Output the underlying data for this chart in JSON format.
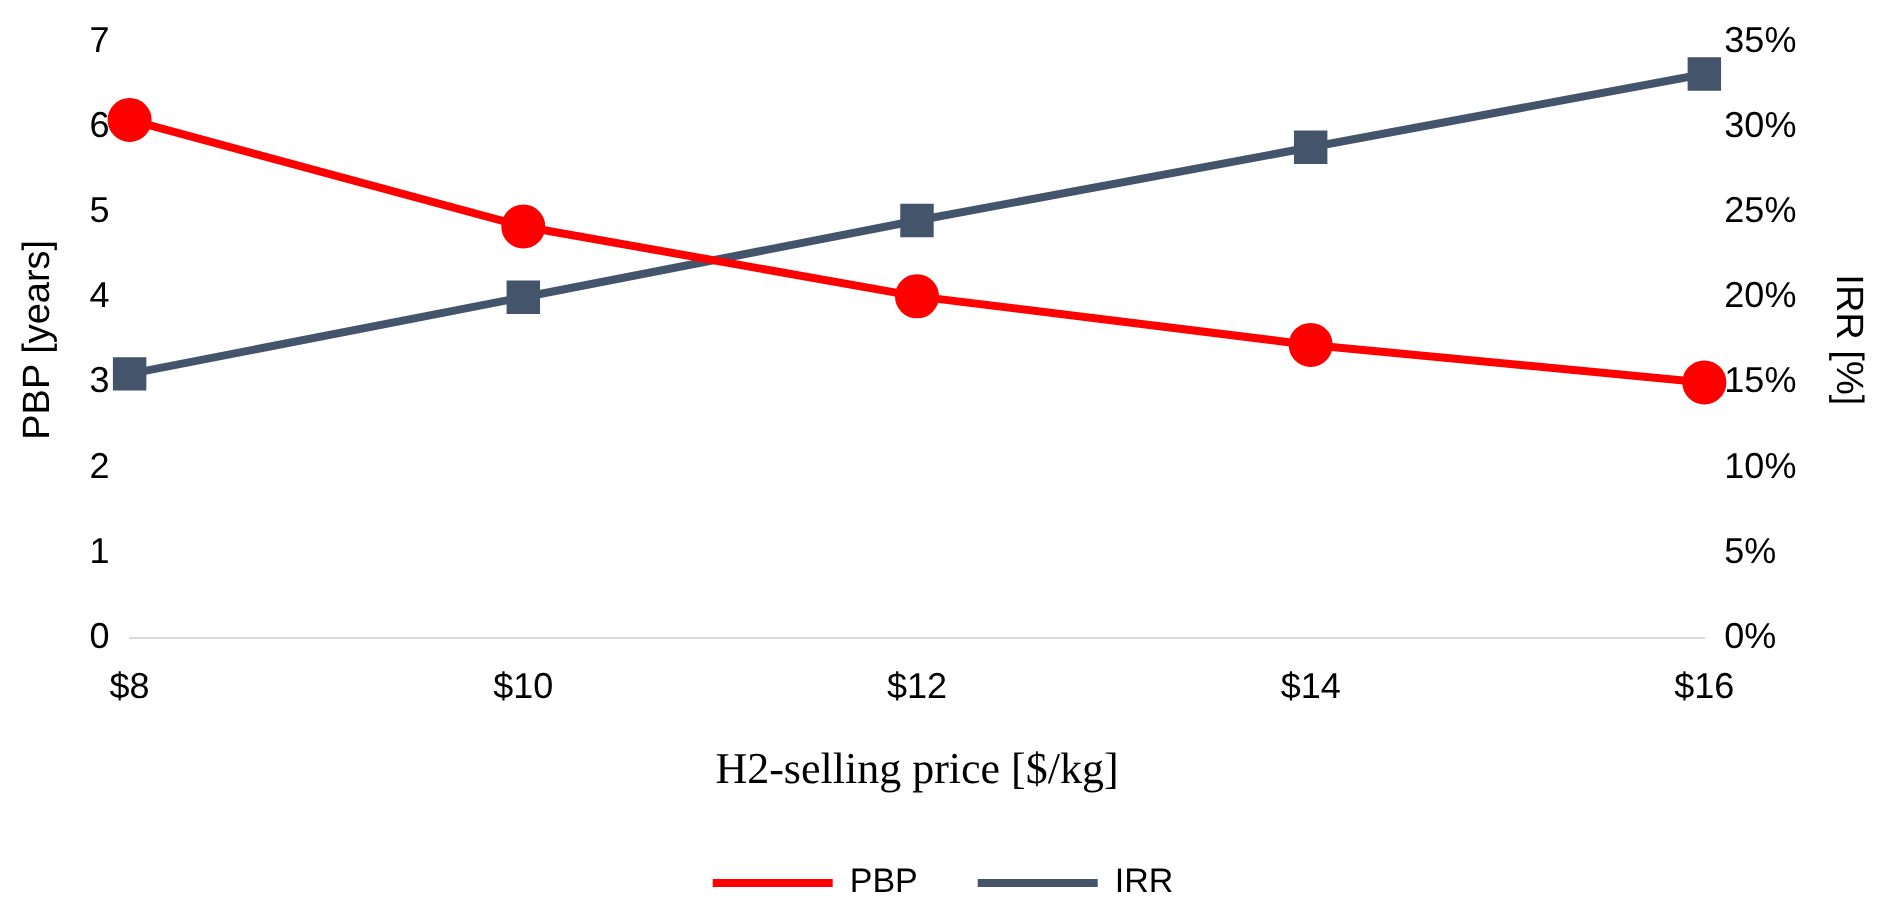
{
  "chart_data": {
    "type": "line",
    "xlabel": "H2-selling price [$/kg]",
    "ylabel": "PBP [years]",
    "y2label": "IRR [%]",
    "categories": [
      "$8",
      "$10",
      "$12",
      "$14",
      "$16"
    ],
    "series": [
      {
        "name": "PBP",
        "color": "#ff0000",
        "values": [
          6.08,
          4.83,
          4.01,
          3.44,
          3.0
        ],
        "marker": "circle"
      },
      {
        "name": "IRR",
        "color": "#44546a",
        "values": [
          15.5,
          20.0,
          24.5,
          28.8,
          33.1
        ],
        "axis": "y2",
        "marker": "square"
      }
    ],
    "ylim": [
      0,
      7
    ],
    "yticks": [
      0,
      1,
      2,
      3,
      4,
      5,
      6,
      7
    ],
    "y2lim": [
      0,
      35
    ],
    "y2ticks": [
      {
        "value": 0,
        "label": "0%"
      },
      {
        "value": 5,
        "label": "5%"
      },
      {
        "value": 10,
        "label": "10%"
      },
      {
        "value": 15,
        "label": "15%"
      },
      {
        "value": 20,
        "label": "20%"
      },
      {
        "value": 25,
        "label": "25%"
      },
      {
        "value": 30,
        "label": "30%"
      },
      {
        "value": 35,
        "label": "35%"
      }
    ],
    "grid": false,
    "legend": "bottom",
    "line_style": "solid"
  }
}
